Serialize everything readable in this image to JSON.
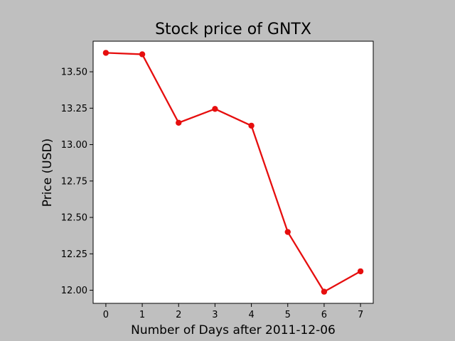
{
  "chart_data": {
    "type": "line",
    "title": "Stock price of GNTX",
    "xlabel": "Number of Days after 2011-12-06",
    "ylabel": "Price (USD)",
    "x": [
      0,
      1,
      2,
      3,
      4,
      5,
      6,
      7
    ],
    "series": [
      {
        "values": [
          13.63,
          13.62,
          13.15,
          13.245,
          13.13,
          12.4,
          11.99,
          12.13
        ],
        "color": "#e60e0e",
        "marker": "circle"
      }
    ],
    "xlim": [
      -0.35,
      7.35
    ],
    "ylim": [
      11.91,
      13.71
    ],
    "xticks": [
      0,
      1,
      2,
      3,
      4,
      5,
      6,
      7
    ],
    "xtick_labels": [
      "0",
      "1",
      "2",
      "3",
      "4",
      "5",
      "6",
      "7"
    ],
    "yticks": [
      12.0,
      12.25,
      12.5,
      12.75,
      13.0,
      13.25,
      13.5
    ],
    "ytick_labels": [
      "12.00",
      "12.25",
      "12.50",
      "12.75",
      "13.00",
      "13.25",
      "13.50"
    ],
    "grid": false,
    "legend": "none",
    "background_color": "#bfbfbf",
    "plot_background_color": "#ffffff"
  }
}
